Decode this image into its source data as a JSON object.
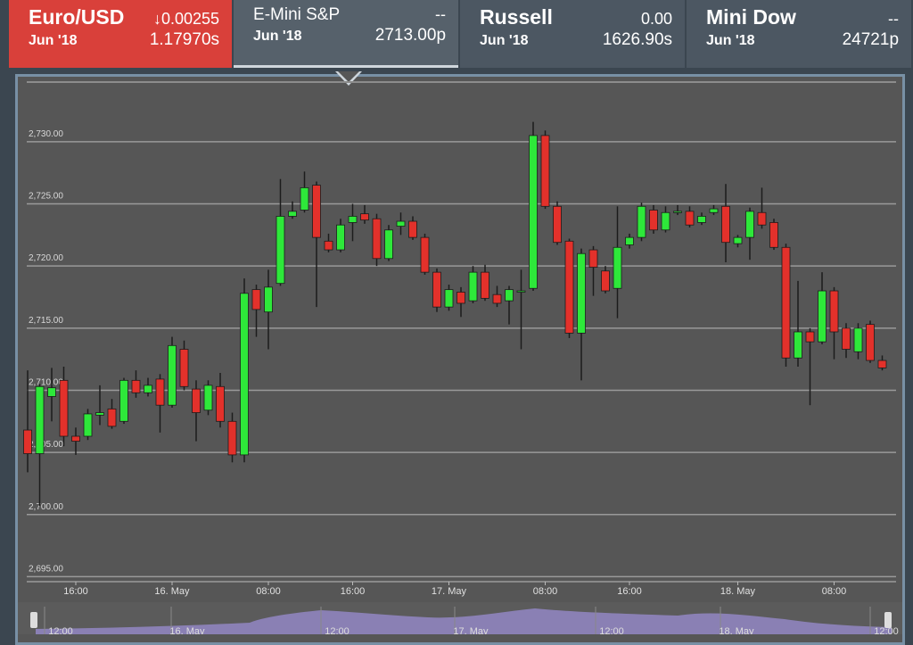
{
  "tabs": [
    {
      "name": "Euro/USD",
      "change": "↓0.00255",
      "contract": "Jun '18",
      "price": "1.17970s"
    },
    {
      "name": "E-Mini S&P",
      "change": "--",
      "contract": "Jun '18",
      "price": "2713.00p"
    },
    {
      "name": "Russell",
      "change": "0.00",
      "contract": "Jun '18",
      "price": "1626.90s"
    },
    {
      "name": "Mini Dow",
      "change": "--",
      "contract": "Jun '18",
      "price": "24721p"
    }
  ],
  "chart_data": {
    "type": "candlestick",
    "up_color": "#2ee83a",
    "down_color": "#e3312b",
    "grid": true,
    "categories": [
      null,
      null,
      null,
      null,
      "16:00",
      null,
      null,
      null,
      null,
      null,
      null,
      null,
      "16. May",
      null,
      null,
      null,
      null,
      null,
      null,
      null,
      "08:00",
      null,
      null,
      null,
      null,
      null,
      null,
      "16:00",
      null,
      null,
      null,
      null,
      null,
      null,
      null,
      "17. May",
      null,
      null,
      null,
      null,
      null,
      null,
      null,
      "08:00",
      null,
      null,
      null,
      null,
      null,
      null,
      "16:00",
      null,
      null,
      null,
      null,
      null,
      null,
      null,
      null,
      "18. May",
      null,
      null,
      null,
      null,
      null,
      null,
      null,
      "08:00",
      null,
      null,
      null,
      null
    ],
    "open": [
      2706.8,
      2704.9,
      2709.5,
      2710.8,
      2706.3,
      2706.3,
      2708.0,
      2708.5,
      2707.5,
      2710.8,
      2709.8,
      2710.9,
      2708.8,
      2713.3,
      2710.1,
      2708.4,
      2710.3,
      2707.5,
      2704.8,
      2718.1,
      2716.3,
      2718.6,
      2724.0,
      2724.5,
      2726.5,
      2722.0,
      2721.3,
      2723.5,
      2724.2,
      2723.8,
      2720.6,
      2723.2,
      2723.6,
      2722.3,
      2719.5,
      2716.7,
      2717.9,
      2717.2,
      2719.5,
      2717.7,
      2717.2,
      2718.0,
      2718.2,
      2730.5,
      2724.8,
      2722.0,
      2714.6,
      2721.3,
      2719.6,
      2718.2,
      2721.7,
      2722.3,
      2724.5,
      2722.9,
      2724.3,
      2724.4,
      2723.5,
      2724.3,
      2724.8,
      2721.8,
      2722.3,
      2724.3,
      2723.5,
      2721.5,
      2712.6,
      2714.7,
      2713.9,
      2718.0,
      2715.0,
      2713.1,
      2715.3,
      2712.4
    ],
    "high": [
      2711.6,
      2710.5,
      2711.8,
      2711.9,
      2707.0,
      2708.5,
      2710.4,
      2709.3,
      2711.0,
      2711.6,
      2711.0,
      2711.3,
      2714.3,
      2714.0,
      2710.8,
      2710.8,
      2711.4,
      2708.2,
      2719.0,
      2718.5,
      2719.7,
      2727.0,
      2725.2,
      2727.6,
      2726.8,
      2722.6,
      2723.8,
      2725.0,
      2724.9,
      2724.2,
      2723.3,
      2724.3,
      2724.0,
      2722.6,
      2719.8,
      2718.5,
      2718.3,
      2720.0,
      2720.1,
      2718.4,
      2718.4,
      2719.7,
      2731.6,
      2730.9,
      2725.2,
      2722.2,
      2721.4,
      2721.6,
      2720.0,
      2724.8,
      2722.6,
      2725.1,
      2724.9,
      2724.8,
      2724.9,
      2724.8,
      2724.3,
      2724.9,
      2726.6,
      2722.5,
      2724.7,
      2726.3,
      2723.8,
      2721.8,
      2718.8,
      2715.0,
      2719.5,
      2718.3,
      2715.4,
      2715.4,
      2715.6,
      2712.8
    ],
    "low": [
      2703.4,
      2700.7,
      2707.5,
      2705.5,
      2704.8,
      2706.0,
      2707.2,
      2706.9,
      2707.3,
      2709.4,
      2709.5,
      2706.6,
      2708.6,
      2710.0,
      2705.9,
      2708.0,
      2707.0,
      2704.2,
      2704.2,
      2714.3,
      2713.3,
      2718.4,
      2723.8,
      2724.3,
      2716.7,
      2721.1,
      2721.1,
      2722.0,
      2723.4,
      2720.0,
      2720.4,
      2722.5,
      2722.1,
      2719.3,
      2716.3,
      2716.4,
      2715.9,
      2717.0,
      2717.2,
      2716.7,
      2715.3,
      2713.3,
      2718.0,
      2724.6,
      2721.7,
      2714.2,
      2710.8,
      2717.6,
      2717.8,
      2715.8,
      2721.4,
      2722.0,
      2722.6,
      2722.7,
      2724.1,
      2723.1,
      2723.3,
      2724.1,
      2720.3,
      2721.5,
      2720.5,
      2723.0,
      2721.3,
      2711.9,
      2711.9,
      2708.8,
      2713.7,
      2712.5,
      2712.6,
      2712.5,
      2712.2,
      2711.6
    ],
    "close": [
      2704.9,
      2710.3,
      2710.2,
      2706.3,
      2705.9,
      2708.1,
      2708.2,
      2707.1,
      2710.8,
      2709.8,
      2710.4,
      2708.8,
      2713.6,
      2710.3,
      2708.2,
      2710.4,
      2707.5,
      2704.8,
      2717.8,
      2716.5,
      2718.3,
      2724.0,
      2724.4,
      2726.3,
      2722.3,
      2721.3,
      2723.3,
      2724.0,
      2723.7,
      2720.6,
      2722.9,
      2723.6,
      2722.3,
      2719.5,
      2716.7,
      2718.1,
      2717.0,
      2719.5,
      2717.4,
      2717.0,
      2718.1,
      2718.0,
      2730.5,
      2724.8,
      2721.9,
      2714.6,
      2721.0,
      2719.9,
      2718.0,
      2721.5,
      2722.3,
      2724.8,
      2722.9,
      2724.3,
      2724.4,
      2723.3,
      2724.0,
      2724.6,
      2721.9,
      2722.3,
      2724.4,
      2723.3,
      2721.5,
      2712.6,
      2714.7,
      2713.9,
      2718.0,
      2714.7,
      2713.3,
      2715.0,
      2712.4,
      2711.8
    ],
    "ylim": [
      2694.6,
      2734.8
    ],
    "yticks": [
      {
        "value": 2695,
        "label": "2,695.00"
      },
      {
        "value": 2700,
        "label": "2,700.00"
      },
      {
        "value": 2705,
        "label": "2,705.00"
      },
      {
        "value": 2710,
        "label": "2,710.00"
      },
      {
        "value": 2715,
        "label": "2,715.00"
      },
      {
        "value": 2720,
        "label": "2,720.00"
      },
      {
        "value": 2725,
        "label": "2,725.00"
      },
      {
        "value": 2730,
        "label": "2,730.00"
      }
    ]
  },
  "navigator_labels": [
    "12:00",
    "16. May",
    "12:00",
    "17. May",
    "12:00",
    "18. May",
    "12:00"
  ]
}
